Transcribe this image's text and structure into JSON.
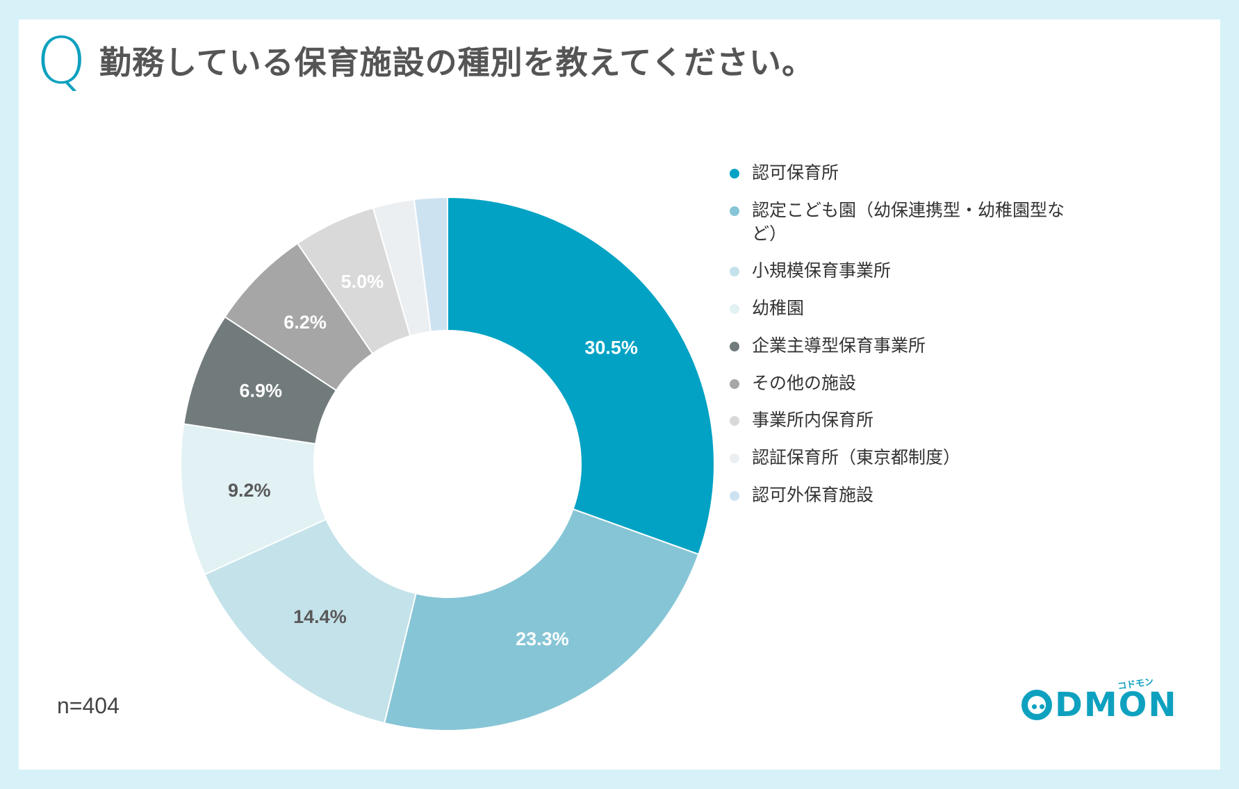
{
  "question": {
    "mark": "Q",
    "text": "勤務している保育施設の種別を教えてください。"
  },
  "sample_size": "n=404",
  "logo": {
    "text": "DMON",
    "tagline": "コドモン"
  },
  "chart_data": {
    "type": "pie",
    "donut": true,
    "title": "勤務している保育施設の種別を教えてください。",
    "legend_position": "right",
    "categories": [
      "認可保育所",
      "認定こども園（幼保連携型・幼稚園型など）",
      "小規模保育事業所",
      "幼稚園",
      "企業主導型保育事業所",
      "その他の施設",
      "事業所内保育所",
      "認証保育所（東京都制度）",
      "認可外保育施設"
    ],
    "values": [
      30.5,
      23.3,
      14.4,
      9.2,
      6.9,
      6.2,
      5.0,
      2.5,
      2.0
    ],
    "labels": [
      "30.5%",
      "23.3%",
      "14.4%",
      "9.2%",
      "6.9%",
      "6.2%",
      "5.0%",
      "",
      ""
    ],
    "colors": [
      "#02a2c4",
      "#86c5d6",
      "#c4e2ea",
      "#e1f1f4",
      "#727b7c",
      "#a6a6a6",
      "#d9d9d9",
      "#ebeff1",
      "#cde2f1"
    ],
    "label_colors": [
      "#ffffff",
      "#ffffff",
      "#595959",
      "#595959",
      "#ffffff",
      "#ffffff",
      "#ffffff",
      "#ffffff",
      "#ffffff"
    ]
  }
}
